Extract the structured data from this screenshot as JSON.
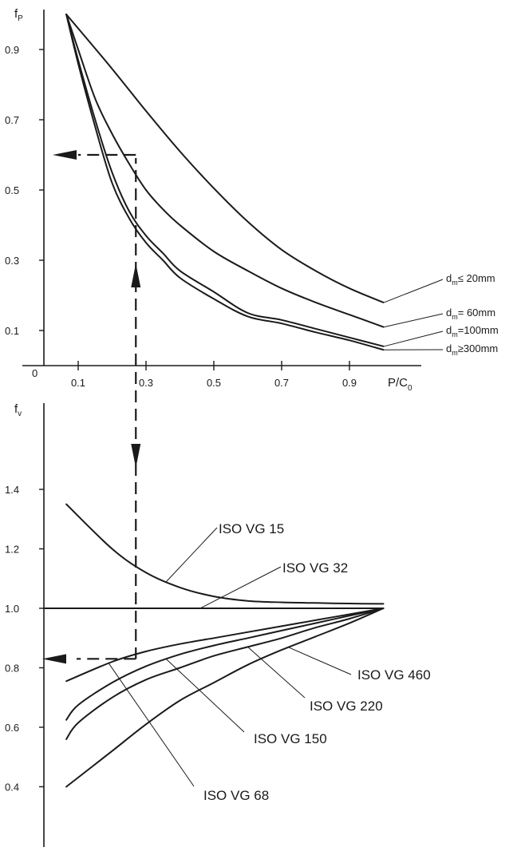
{
  "chart_data": [
    {
      "type": "line",
      "title": "",
      "ylabel": "f",
      "ylabel_sub": "P",
      "xlabel": "P/C",
      "xlabel_sub": "0",
      "xlim": [
        0,
        1.05
      ],
      "ylim": [
        0,
        1.05
      ],
      "origin_label": "0",
      "xticks": [
        0.1,
        0.3,
        0.5,
        0.7,
        0.9
      ],
      "xtick_labels": [
        "0.1",
        "0.3",
        "0.5",
        "0.7",
        "0.9"
      ],
      "yticks": [
        0.1,
        0.3,
        0.5,
        0.7,
        0.9
      ],
      "ytick_labels": [
        "0.1",
        "0.3",
        "0.5",
        "0.7",
        "0.9"
      ],
      "grid": false,
      "series": [
        {
          "name_parts": [
            "d",
            "m",
            "≤",
            "  20mm"
          ],
          "x": [
            0.065,
            0.2,
            0.3,
            0.4,
            0.5,
            0.6,
            0.7,
            0.8,
            0.9,
            1.0
          ],
          "y": [
            1.0,
            0.845,
            0.725,
            0.61,
            0.505,
            0.41,
            0.33,
            0.27,
            0.22,
            0.18
          ]
        },
        {
          "name_parts": [
            "d",
            "m",
            "=",
            "  60mm"
          ],
          "x": [
            0.065,
            0.1,
            0.15,
            0.2,
            0.25,
            0.3,
            0.35,
            0.4,
            0.5,
            0.6,
            0.7,
            0.8,
            0.9,
            1.0
          ],
          "y": [
            1.0,
            0.9,
            0.76,
            0.66,
            0.575,
            0.5,
            0.445,
            0.4,
            0.325,
            0.27,
            0.22,
            0.18,
            0.145,
            0.11
          ]
        },
        {
          "name_parts": [
            "d",
            "m",
            "=",
            "100mm"
          ],
          "x": [
            0.065,
            0.1,
            0.15,
            0.2,
            0.25,
            0.3,
            0.35,
            0.4,
            0.5,
            0.6,
            0.7,
            0.8,
            0.9,
            1.0
          ],
          "y": [
            1.0,
            0.87,
            0.7,
            0.55,
            0.44,
            0.37,
            0.32,
            0.27,
            0.21,
            0.15,
            0.13,
            0.105,
            0.08,
            0.055
          ]
        },
        {
          "name_parts": [
            "d",
            "m",
            "≥",
            "300mm"
          ],
          "x": [
            0.065,
            0.1,
            0.15,
            0.2,
            0.25,
            0.3,
            0.35,
            0.4,
            0.5,
            0.6,
            0.7,
            0.8,
            0.9,
            1.0
          ],
          "y": [
            1.0,
            0.86,
            0.68,
            0.52,
            0.42,
            0.35,
            0.3,
            0.25,
            0.19,
            0.14,
            0.12,
            0.095,
            0.072,
            0.045
          ]
        }
      ],
      "example_reading": {
        "x": 0.27,
        "y": 0.6
      }
    },
    {
      "type": "line",
      "title": "",
      "ylabel": "f",
      "ylabel_sub": "v",
      "xlim": [
        0,
        1.05
      ],
      "ylim": [
        0.33,
        1.6
      ],
      "yticks": [
        0.4,
        0.6,
        0.8,
        1.0,
        1.2,
        1.4
      ],
      "ytick_labels": [
        "0.4",
        "0.6",
        "0.8",
        "1.0",
        "1.2",
        "1.4"
      ],
      "grid": false,
      "series": [
        {
          "name": "ISO VG 15",
          "x": [
            0.065,
            0.2,
            0.3,
            0.4,
            0.5,
            0.6,
            0.7,
            0.8,
            0.9,
            1.0
          ],
          "y": [
            1.35,
            1.2,
            1.12,
            1.07,
            1.04,
            1.025,
            1.02,
            1.018,
            1.016,
            1.015
          ]
        },
        {
          "name": "ISO VG 32",
          "x": [
            0.065,
            1.0
          ],
          "y": [
            1.0,
            1.0
          ]
        },
        {
          "name": "ISO VG 68",
          "x": [
            0.065,
            0.2,
            0.3,
            0.4,
            0.5,
            0.6,
            0.7,
            0.8,
            0.9,
            1.0
          ],
          "y": [
            0.755,
            0.82,
            0.855,
            0.88,
            0.9,
            0.92,
            0.94,
            0.96,
            0.98,
            1.0
          ]
        },
        {
          "name": "ISO VG 150",
          "x": [
            0.065,
            0.1,
            0.2,
            0.3,
            0.4,
            0.5,
            0.6,
            0.7,
            0.8,
            0.9,
            1.0
          ],
          "y": [
            0.625,
            0.675,
            0.75,
            0.805,
            0.845,
            0.875,
            0.9,
            0.925,
            0.95,
            0.975,
            1.0
          ]
        },
        {
          "name": "ISO VG 220",
          "x": [
            0.065,
            0.1,
            0.2,
            0.3,
            0.4,
            0.5,
            0.6,
            0.7,
            0.8,
            0.9,
            1.0
          ],
          "y": [
            0.56,
            0.615,
            0.7,
            0.76,
            0.8,
            0.84,
            0.87,
            0.9,
            0.935,
            0.965,
            1.0
          ]
        },
        {
          "name": "ISO VG 460",
          "x": [
            0.065,
            0.2,
            0.3,
            0.4,
            0.5,
            0.6,
            0.7,
            0.8,
            0.9,
            1.0
          ],
          "y": [
            0.4,
            0.52,
            0.61,
            0.69,
            0.75,
            0.81,
            0.86,
            0.905,
            0.95,
            1.0
          ]
        }
      ],
      "example_reading": {
        "x": 0.27,
        "y": 0.83
      }
    }
  ]
}
